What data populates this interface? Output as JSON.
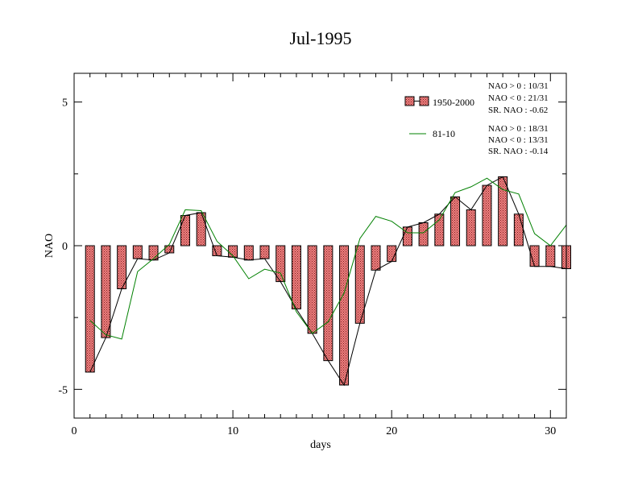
{
  "chart_data": {
    "type": "bar",
    "title": "Jul-1995",
    "xlabel": "days",
    "ylabel": "NAO",
    "xlim": [
      0,
      31
    ],
    "ylim": [
      -6,
      6
    ],
    "xticks": [
      0,
      10,
      20,
      30
    ],
    "yticks": [
      -5,
      0,
      5
    ],
    "x": [
      1,
      2,
      3,
      4,
      5,
      6,
      7,
      8,
      9,
      10,
      11,
      12,
      13,
      14,
      15,
      16,
      17,
      18,
      19,
      20,
      21,
      22,
      23,
      24,
      25,
      26,
      27,
      28,
      29,
      30,
      31
    ],
    "series": [
      {
        "name": "1950-2000",
        "kind": "bar+line",
        "values": [
          -4.4,
          -3.2,
          -1.5,
          -0.45,
          -0.5,
          -0.25,
          1.05,
          1.15,
          -0.35,
          -0.4,
          -0.5,
          -0.45,
          -1.25,
          -2.2,
          -3.05,
          -4.0,
          -4.85,
          -2.7,
          -0.85,
          -0.55,
          0.65,
          0.8,
          1.1,
          1.7,
          1.25,
          2.1,
          2.4,
          1.1,
          -0.72,
          -0.72,
          -0.8
        ]
      },
      {
        "name": "81-10",
        "kind": "line",
        "color": "#008000",
        "values": [
          -2.6,
          -3.1,
          -3.25,
          -0.9,
          -0.45,
          0.05,
          1.25,
          1.22,
          0.15,
          -0.35,
          -1.15,
          -0.82,
          -0.95,
          -2.3,
          -3.05,
          -2.65,
          -1.65,
          0.25,
          1.02,
          0.85,
          0.45,
          0.45,
          0.9,
          1.85,
          2.05,
          2.35,
          1.95,
          1.8,
          0.42,
          0.0,
          0.72
        ]
      }
    ],
    "stats": [
      [
        "NAO > 0 : 10/31",
        "NAO < 0 : 21/31",
        "SR. NAO : -0.62"
      ],
      [
        "NAO > 0 : 18/31",
        "NAO < 0 : 13/31",
        "SR. NAO : -0.14"
      ]
    ],
    "bar_fill": "#f08080",
    "grid": false,
    "legend_position": "top-right"
  }
}
